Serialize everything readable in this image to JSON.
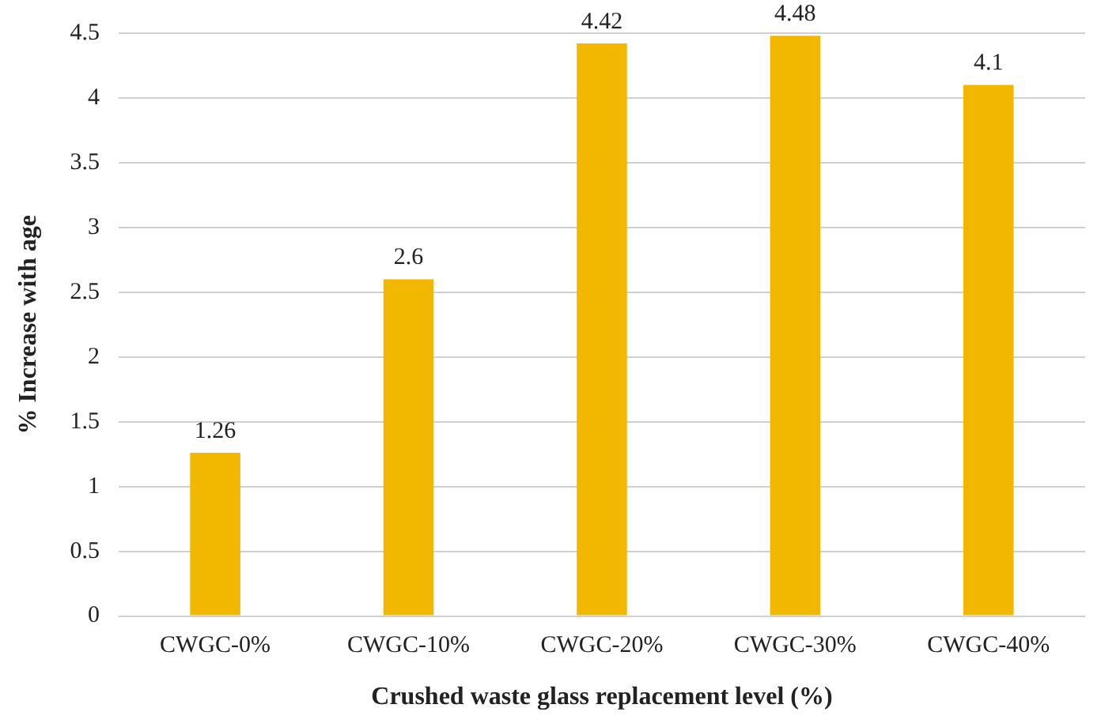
{
  "chart_data": {
    "type": "bar",
    "xlabel": "Crushed waste glass replacement level (%)",
    "ylabel": "% Increase with age",
    "categories": [
      "CWGC-0%",
      "CWGC-10%",
      "CWGC-20%",
      "CWGC-30%",
      "CWGC-40%"
    ],
    "values": [
      1.26,
      2.6,
      4.42,
      4.48,
      4.1
    ],
    "color": "#f2b800",
    "ylim": [
      0,
      4.5
    ],
    "yticks": [
      0,
      0.5,
      1,
      1.5,
      2,
      2.5,
      3,
      3.5,
      4,
      4.5
    ],
    "grid": "y",
    "data_labels": true,
    "legend": false
  }
}
